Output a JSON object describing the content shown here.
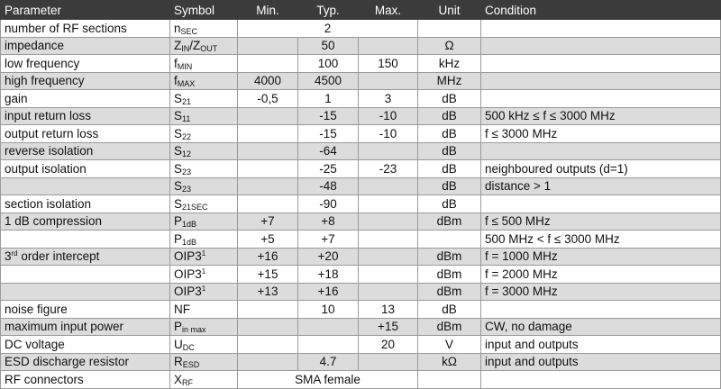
{
  "headers": [
    "Parameter",
    "Symbol",
    "Min.",
    "Typ.",
    "Max.",
    "Unit",
    "Condition"
  ],
  "rows": [
    {
      "param": "number of RF sections",
      "sym": "n",
      "sub": "SEC",
      "merged": "2",
      "unit": "",
      "cond": ""
    },
    {
      "param": "impedance",
      "sym": "Z",
      "sub": "IN",
      "sym2": "/Z",
      "sub2": "OUT",
      "min": "",
      "typ": "50",
      "max": "",
      "unit": "Ω",
      "cond": ""
    },
    {
      "param": "low frequency",
      "sym": "f",
      "sub": "MIN",
      "min": "",
      "typ": "100",
      "max": "150",
      "unit": "kHz",
      "cond": ""
    },
    {
      "param": "high frequency",
      "sym": "f",
      "sub": "MAX",
      "min": "4000",
      "typ": "4500",
      "max": "",
      "unit": "MHz",
      "cond": ""
    },
    {
      "param": "gain",
      "sym": "S",
      "sub": "21",
      "min": "-0,5",
      "typ": "1",
      "max": "3",
      "unit": "dB",
      "cond": ""
    },
    {
      "param": "input return loss",
      "sym": "S",
      "sub": "11",
      "min": "",
      "typ": "-15",
      "max": "-10",
      "unit": "dB",
      "cond": "500 kHz ≤ f ≤ 3000 MHz"
    },
    {
      "param": "output return loss",
      "sym": "S",
      "sub": "22",
      "min": "",
      "typ": "-15",
      "max": "-10",
      "unit": "dB",
      "cond": "f ≤ 3000 MHz"
    },
    {
      "param": "reverse isolation",
      "sym": "S",
      "sub": "12",
      "min": "",
      "typ": "-64",
      "max": "",
      "unit": "dB",
      "cond": ""
    },
    {
      "param": "output isolation",
      "sym": "S",
      "sub": "23",
      "min": "",
      "typ": "-25",
      "max": "-23",
      "unit": "dB",
      "cond": "neighboured outputs (d=1)"
    },
    {
      "param": "",
      "sym": "S",
      "sub": "23",
      "min": "",
      "typ": "-48",
      "max": "",
      "unit": "dB",
      "cond": "distance > 1"
    },
    {
      "param": "section isolation",
      "sym": "S",
      "sub": "21SEC",
      "min": "",
      "typ": "-90",
      "max": "",
      "unit": "dB",
      "cond": ""
    },
    {
      "param": "1 dB compression",
      "sym": "P",
      "sub": "1dB",
      "min": "+7",
      "typ": "+8",
      "max": "",
      "unit": "dBm",
      "cond": "f ≤ 500 MHz"
    },
    {
      "param": "",
      "sym": "P",
      "sub": "1dB",
      "min": "+5",
      "typ": "+7",
      "max": "",
      "unit": "",
      "cond": "500 MHz < f ≤ 3000 MHz"
    },
    {
      "param": "3",
      "psup": "rd",
      "param2": " order intercept",
      "sym": "OIP3",
      "sup": "1",
      "min": "+16",
      "typ": "+20",
      "max": "",
      "unit": "dBm",
      "cond": "f = 1000 MHz"
    },
    {
      "param": "",
      "sym": "OIP3",
      "sup": "1",
      "min": "+15",
      "typ": "+18",
      "max": "",
      "unit": "dBm",
      "cond": "f = 2000 MHz"
    },
    {
      "param": "",
      "sym": "OIP3",
      "sup": "1",
      "min": "+13",
      "typ": "+16",
      "max": "",
      "unit": "dBm",
      "cond": "f = 3000 MHz"
    },
    {
      "param": "noise figure",
      "sym": "NF",
      "min": "",
      "typ": "10",
      "max": "13",
      "unit": "dB",
      "cond": ""
    },
    {
      "param": "maximum input power",
      "sym": "P",
      "sub": "in max",
      "min": "",
      "typ": "",
      "max": "+15",
      "unit": "dBm",
      "cond": "CW, no damage"
    },
    {
      "param": "DC voltage",
      "sym": "U",
      "sub": "DC",
      "min": "",
      "typ": "",
      "max": "20",
      "unit": "V",
      "cond": "input and outputs"
    },
    {
      "param": "ESD discharge resistor",
      "sym": "R",
      "sub": "ESD",
      "min": "",
      "typ": "4.7",
      "max": "",
      "unit": "kΩ",
      "cond": "input and outputs"
    },
    {
      "param": "RF connectors",
      "sym": "X",
      "sub": "RF",
      "merged": "SMA female",
      "unit": "",
      "cond": ""
    }
  ]
}
